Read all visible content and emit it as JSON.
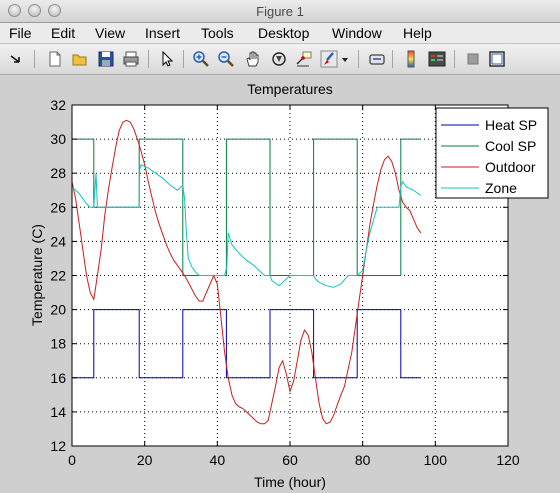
{
  "window": {
    "title": "Figure 1"
  },
  "menu": [
    "File",
    "Edit",
    "View",
    "Insert",
    "Tools",
    "Desktop",
    "Window",
    "Help"
  ],
  "toolbar": {
    "icons": [
      "dock-arrow-icon",
      "new-file-icon",
      "open-folder-icon",
      "save-icon",
      "print-icon",
      "pointer-icon",
      "zoom-in-icon",
      "zoom-out-icon",
      "pan-hand-icon",
      "rotate-3d-icon",
      "data-cursor-icon",
      "brush-icon",
      "brush-dropdown-icon",
      "link-plot-icon",
      "colorbar-icon",
      "legend-icon",
      "hide-tools-icon",
      "show-tools-icon"
    ]
  },
  "colors": {
    "heat": "#0000ad",
    "cool": "#008040",
    "outdoor": "#c81e1e",
    "zone": "#13c4c4"
  },
  "chart_data": {
    "type": "line",
    "title": "Temperatures",
    "xlabel": "Time (hour)",
    "ylabel": "Temperature (C)",
    "xlim": [
      0,
      120
    ],
    "ylim": [
      12,
      32
    ],
    "xticks": [
      0,
      20,
      40,
      60,
      80,
      100,
      120
    ],
    "yticks": [
      12,
      14,
      16,
      18,
      20,
      22,
      24,
      26,
      28,
      30,
      32
    ],
    "grid": true,
    "legend_position": "top-right",
    "series": [
      {
        "name": "Heat SP",
        "color": "#0000ad",
        "x": [
          0,
          6,
          6,
          18.5,
          18.5,
          30.5,
          30.5,
          42.5,
          42.5,
          54.5,
          54.5,
          66.5,
          66.5,
          78.5,
          78.5,
          90.5,
          90.5,
          96
        ],
        "y": [
          16,
          16,
          20,
          20,
          16,
          16,
          20,
          20,
          16,
          16,
          20,
          20,
          16,
          16,
          20,
          20,
          16,
          16
        ]
      },
      {
        "name": "Cool SP",
        "color": "#008040",
        "x": [
          0,
          6,
          6,
          18.5,
          18.5,
          30.5,
          30.5,
          42.5,
          42.5,
          54.5,
          54.5,
          66.5,
          66.5,
          78.5,
          78.5,
          90.5,
          90.5,
          96
        ],
        "y": [
          30,
          30,
          26,
          26,
          30,
          30,
          22,
          22,
          30,
          30,
          22,
          22,
          30,
          30,
          22,
          22,
          30,
          30
        ]
      },
      {
        "name": "Outdoor",
        "color": "#c81e1e",
        "x": [
          0,
          1,
          2,
          3,
          4,
          5,
          6,
          7,
          8,
          9,
          10,
          11,
          12,
          13,
          14,
          15,
          16,
          17,
          18,
          19,
          20,
          21,
          22,
          23,
          24,
          25,
          26,
          27,
          28,
          29,
          30,
          31,
          32,
          33,
          34,
          35,
          36,
          37,
          38,
          39,
          40,
          41,
          42,
          43,
          44,
          45,
          46,
          47,
          48,
          49,
          50,
          51,
          52,
          53,
          54,
          55,
          56,
          57,
          58,
          59,
          60,
          61,
          62,
          63,
          64,
          65,
          66,
          67,
          68,
          69,
          70,
          71,
          72,
          73,
          74,
          75,
          76,
          77,
          78,
          79,
          80,
          81,
          82,
          83,
          84,
          85,
          86,
          87,
          88,
          89,
          90,
          91,
          92,
          93,
          94,
          95,
          96
        ],
        "y": [
          27.5,
          26.5,
          25,
          23.5,
          22,
          21,
          20.6,
          22,
          23.5,
          25.5,
          27,
          28.3,
          29.5,
          30.5,
          31,
          31.1,
          31,
          30.6,
          30,
          29.3,
          28.5,
          27.5,
          26.6,
          25.7,
          25,
          24.4,
          23.8,
          23.3,
          22.9,
          22.6,
          22.3,
          22,
          21.6,
          21.2,
          20.8,
          20.5,
          20.5,
          21,
          21.5,
          22,
          21.5,
          19.5,
          17.5,
          16,
          15,
          14.5,
          14.3,
          14.2,
          14,
          13.8,
          13.6,
          13.4,
          13.3,
          13.3,
          13.5,
          14.5,
          15.5,
          16.6,
          17,
          16.2,
          15.2,
          15.8,
          17,
          18.2,
          18.8,
          18.5,
          17.5,
          16,
          14.5,
          13.6,
          13.3,
          13.4,
          13.8,
          14.4,
          15,
          15.5,
          16.5,
          17.5,
          19,
          20.5,
          22,
          23.5,
          25,
          26.2,
          27.3,
          28.2,
          28.8,
          29,
          28.7,
          28,
          27,
          26.3,
          26,
          25.8,
          25.3,
          24.8,
          24.5
        ]
      },
      {
        "name": "Zone",
        "color": "#13c4c4",
        "x": [
          0,
          2,
          4,
          5,
          6,
          6.3,
          6.6,
          7,
          10,
          14,
          18.5,
          18.6,
          19,
          21,
          23,
          25,
          27,
          29,
          30.5,
          31,
          31.5,
          32,
          33,
          34,
          35,
          36,
          37,
          38,
          39,
          40,
          41,
          42,
          42.6,
          43,
          44,
          46,
          48,
          50,
          52,
          53,
          54,
          54.5,
          55,
          57,
          60,
          63,
          66,
          66.5,
          67,
          68,
          70,
          72,
          74,
          76,
          78,
          78.5,
          80,
          81,
          82,
          84,
          86,
          88,
          90,
          90.5,
          91,
          92,
          94,
          96
        ],
        "y": [
          27.2,
          26.8,
          26.2,
          26,
          26,
          27,
          28,
          26,
          26,
          26,
          26,
          28.2,
          28.5,
          28.3,
          28,
          27.7,
          27.3,
          27,
          27.3,
          26.5,
          24.5,
          23,
          22.5,
          22.2,
          22,
          22,
          22,
          22,
          22,
          22,
          22,
          22,
          22.5,
          24.5,
          23.8,
          23.3,
          22.9,
          22.6,
          22.2,
          22,
          22,
          22,
          21.7,
          21.4,
          22,
          22,
          22,
          22,
          21.8,
          21.6,
          21.4,
          21.3,
          21.5,
          22,
          22,
          22,
          22.3,
          23.5,
          24.5,
          26,
          26,
          26,
          26,
          27.2,
          27.5,
          27.2,
          27,
          26.7
        ]
      }
    ]
  }
}
